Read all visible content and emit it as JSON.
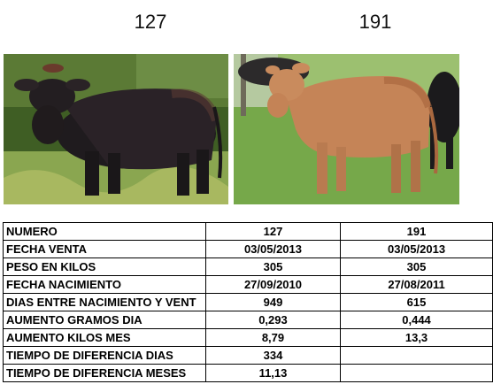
{
  "headers": {
    "left": "127",
    "right": "191"
  },
  "photos": {
    "left": {
      "icon": "black-cow-photo",
      "bg": "#4a6b2a",
      "animal": "#1d1a1c"
    },
    "right": {
      "icon": "brown-cow-photo",
      "bg": "#7fae4e",
      "animal": "#c9875a"
    }
  },
  "table": {
    "rows": [
      {
        "label": "NUMERO",
        "v1": "127",
        "v2": "191"
      },
      {
        "label": "FECHA VENTA",
        "v1": "03/05/2013",
        "v2": "03/05/2013"
      },
      {
        "label": "PESO EN KILOS",
        "v1": "305",
        "v2": "305"
      },
      {
        "label": "FECHA NACIMIENTO",
        "v1": "27/09/2010",
        "v2": "27/08/2011"
      },
      {
        "label": "DIAS ENTRE NACIMIENTO Y VENT",
        "v1": "949",
        "v2": "615"
      },
      {
        "label": "AUMENTO GRAMOS DIA",
        "v1": "0,293",
        "v2": "0,444"
      },
      {
        "label": "AUMENTO KILOS MES",
        "v1": "8,79",
        "v2": "13,3"
      },
      {
        "label": "TIEMPO DE DIFERENCIA DIAS",
        "v1": "334",
        "v2": ""
      },
      {
        "label": "TIEMPO DE DIFERENCIA MESES",
        "v1": "11,13",
        "v2": ""
      }
    ]
  }
}
